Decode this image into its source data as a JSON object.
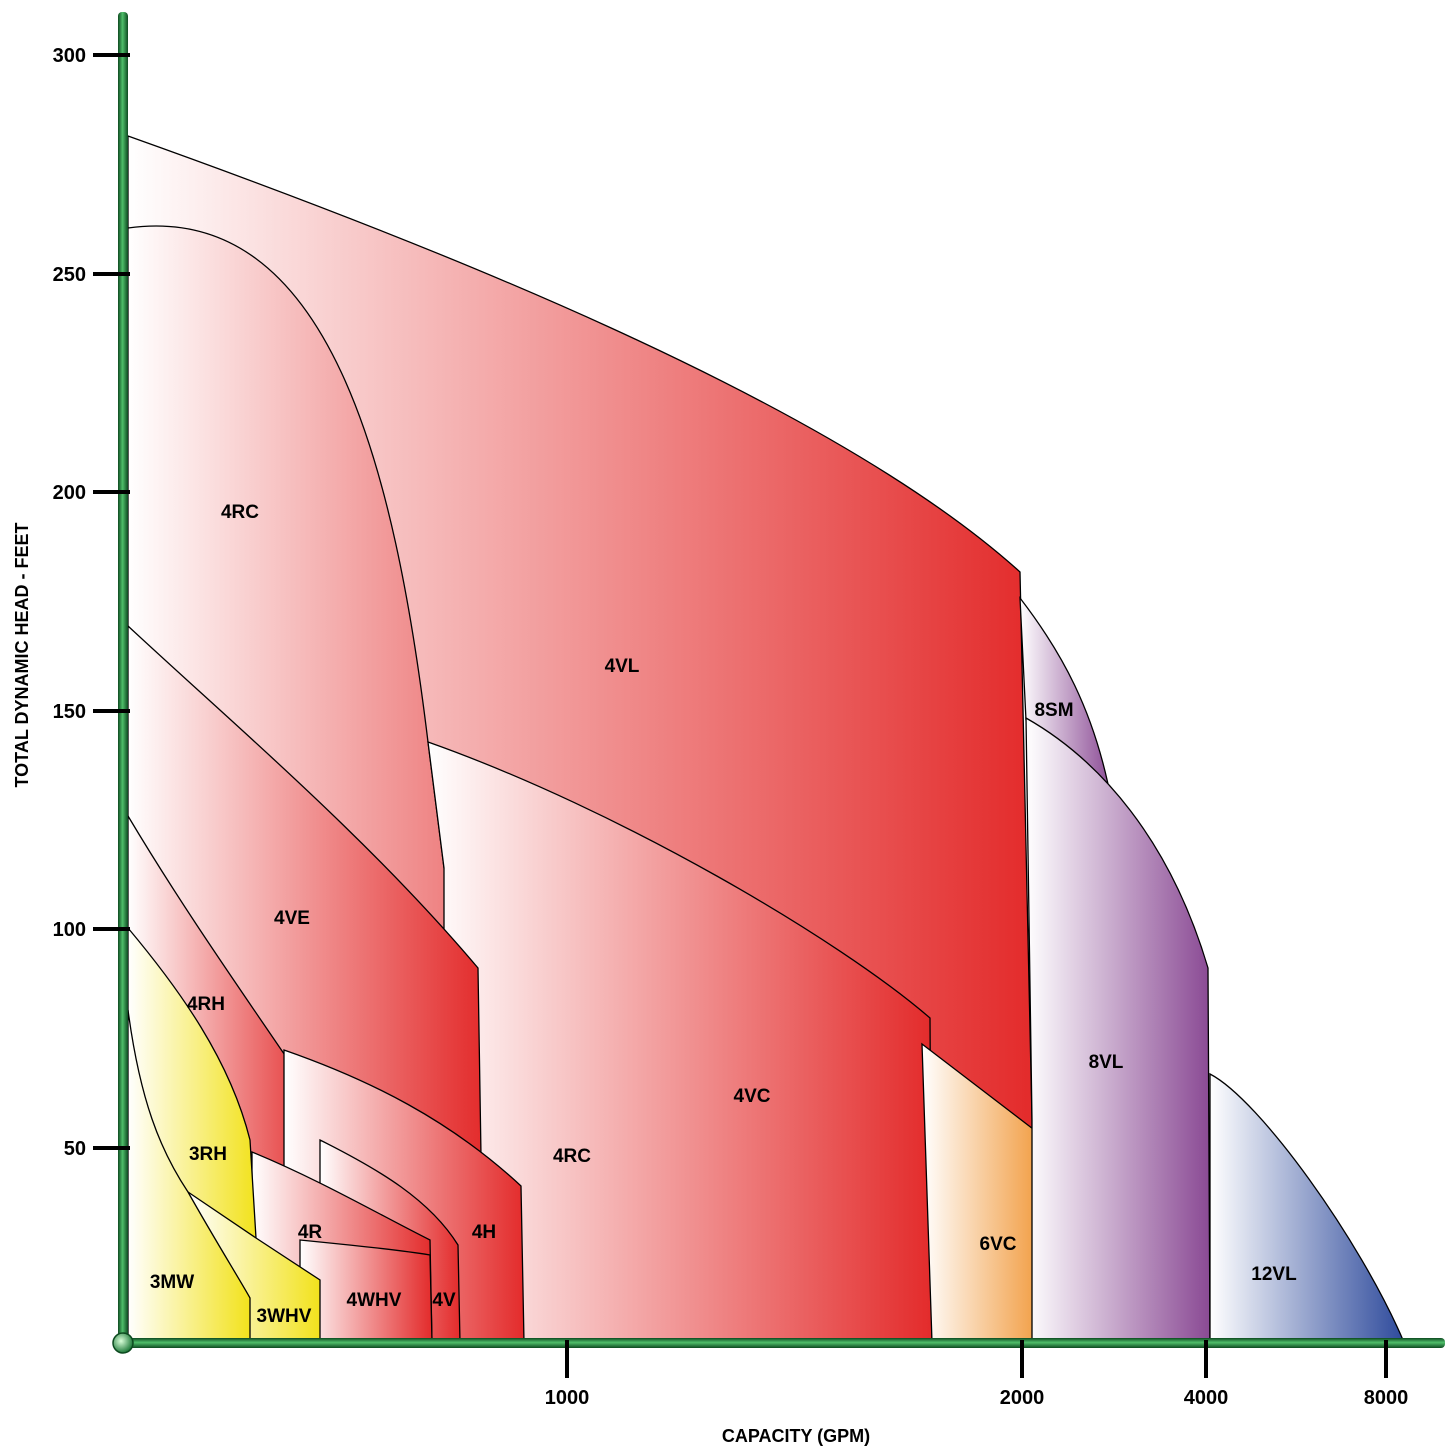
{
  "chart_data": {
    "type": "area",
    "title": "",
    "xlabel": "CAPACITY (GPM)",
    "ylabel": "TOTAL DYNAMIC HEAD - FEET",
    "x_scale": "piecewise",
    "x_ticks": [
      1000,
      2000,
      4000,
      8000
    ],
    "ylim": [
      0,
      300
    ],
    "y_ticks": [
      50,
      100,
      150,
      200,
      250,
      300
    ],
    "grid": false,
    "legend": "none",
    "colors": {
      "axis": "#1f7a3a",
      "red": "#e32b2b",
      "yellow": "#f2e21c",
      "orange": "#ef8c22",
      "purple": "#8a4a94",
      "blue": "#2f4b9c"
    },
    "series": [
      {
        "name": "4VL",
        "color_key": "red",
        "x": [
          0,
          1000,
          2000,
          2025,
          2025,
          0
        ],
        "y": [
          282,
          200,
          180,
          40,
          0,
          0
        ]
      },
      {
        "name": "4RC",
        "color_key": "red",
        "x": [
          0,
          350,
          720,
          770,
          850,
          1050,
          1060,
          0
        ],
        "y": [
          261,
          200,
          130,
          111,
          90,
          50,
          0,
          0
        ]
      },
      {
        "name": "4RC",
        "color_key": "red",
        "x": [
          0,
          350,
          720,
          770,
          850,
          1050,
          1060,
          0
        ],
        "y": [
          261,
          200,
          130,
          111,
          90,
          50,
          0,
          0
        ]
      },
      {
        "name": "4VC",
        "color_key": "red",
        "x": [
          690,
          1200,
          1790,
          1810,
          730
        ],
        "y": [
          140,
          100,
          80,
          0,
          0
        ]
      },
      {
        "name": "4VE",
        "color_key": "red",
        "x": [
          0,
          250,
          795,
          805,
          0
        ],
        "y": [
          170,
          140,
          90,
          0,
          0
        ]
      },
      {
        "name": "4RH",
        "color_key": "red",
        "x": [
          0,
          200,
          445,
          455,
          0
        ],
        "y": [
          126,
          70,
          58,
          0,
          0
        ]
      },
      {
        "name": "4H",
        "color_key": "red",
        "x": [
          370,
          600,
          890,
          900,
          370
        ],
        "y": [
          71,
          55,
          39,
          0,
          0
        ]
      },
      {
        "name": "4R",
        "color_key": "red",
        "x": [
          280,
          450,
          690,
          695,
          280
        ],
        "y": [
          50,
          40,
          28,
          0,
          0
        ]
      },
      {
        "name": "4WHV",
        "color_key": "red",
        "x": [
          440,
          690,
          700,
          440
        ],
        "y": [
          40,
          25,
          0,
          0
        ]
      },
      {
        "name": "4V",
        "color_key": "red",
        "x": [
          690,
          755,
          760,
          690
        ],
        "y": [
          22,
          20,
          0,
          0
        ]
      },
      {
        "name": "3RH",
        "color_key": "yellow",
        "x": [
          0,
          300,
          310,
          0
        ],
        "y": [
          100,
          50,
          30,
          0
        ]
      },
      {
        "name": "3WHV",
        "color_key": "yellow",
        "x": [
          160,
          290,
          440,
          450,
          160
        ],
        "y": [
          40,
          30,
          20,
          0,
          0
        ]
      },
      {
        "name": "3MW",
        "color_key": "yellow",
        "x": [
          0,
          160,
          290,
          290,
          0
        ],
        "y": [
          83,
          40,
          15,
          0,
          0
        ]
      },
      {
        "name": "6VC",
        "color_key": "orange",
        "x": [
          1780,
          2060,
          2090,
          1800
        ],
        "y": [
          73,
          50,
          0,
          0
        ]
      },
      {
        "name": "8SM",
        "color_key": "purple",
        "x": [
          2000,
          2500,
          3000,
          3000
        ],
        "y": [
          177,
          150,
          130,
          125
        ]
      },
      {
        "name": "8VL",
        "color_key": "purple",
        "x": [
          2020,
          2500,
          3000,
          4000,
          4010,
          2020
        ],
        "y": [
          150,
          142,
          130,
          92,
          0,
          0
        ]
      },
      {
        "name": "12VL",
        "color_key": "blue",
        "x": [
          4020,
          5500,
          8000,
          8400,
          4020
        ],
        "y": [
          67,
          40,
          10,
          0,
          0
        ]
      }
    ]
  },
  "labels": {
    "x_ticks": [
      "1000",
      "2000",
      "4000",
      "8000"
    ],
    "y_ticks": [
      "50",
      "100",
      "150",
      "200",
      "250",
      "300"
    ],
    "regions": [
      "4RC",
      "4VL",
      "8SM",
      "4VE",
      "4RH",
      "8VL",
      "4VC",
      "3RH",
      "4RC",
      "4H",
      "4R",
      "6VC",
      "12VL",
      "3MW",
      "4WHV",
      "4V",
      "3WHV"
    ]
  }
}
